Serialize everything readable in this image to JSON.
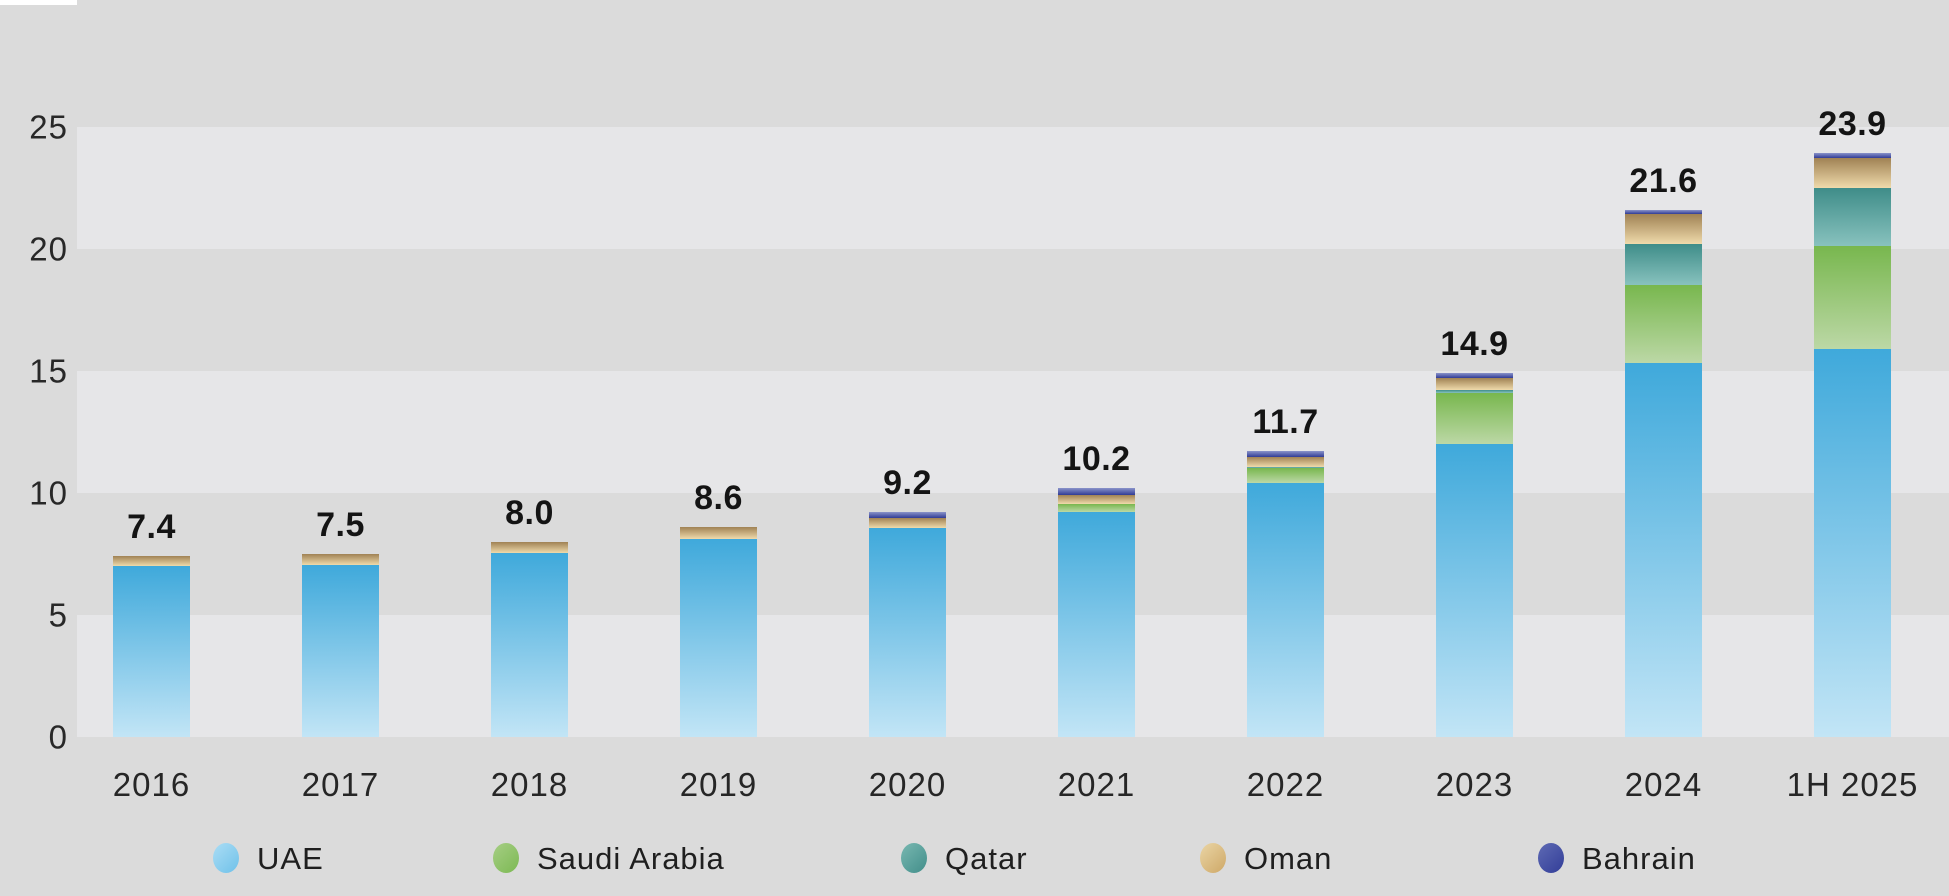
{
  "page": {
    "background_color": "#dbdbdb",
    "grid_band_color": "#e6e6e8",
    "corner_chip_color": "#ffffff"
  },
  "chart_data": {
    "type": "bar",
    "stacked": true,
    "title": "",
    "xlabel": "",
    "ylabel": "",
    "categories": [
      "2016",
      "2017",
      "2018",
      "2019",
      "2020",
      "2021",
      "2022",
      "2023",
      "2024",
      "1H 2025"
    ],
    "series": [
      {
        "name": "UAE",
        "color_top": "#3fa9db",
        "color_bottom": "#c2e5f6",
        "values": [
          7.0,
          7.05,
          7.55,
          8.1,
          8.55,
          9.2,
          10.4,
          12.0,
          15.3,
          15.9
        ]
      },
      {
        "name": "Saudi Arabia",
        "color_top": "#78b74e",
        "color_bottom": "#bcd8a6",
        "values": [
          0,
          0,
          0,
          0,
          0,
          0.35,
          0.6,
          2.1,
          3.2,
          4.2
        ]
      },
      {
        "name": "Qatar",
        "color_top": "#3f8d89",
        "color_bottom": "#88c2be",
        "values": [
          0,
          0,
          0,
          0,
          0,
          0,
          0.05,
          0.1,
          1.7,
          2.4
        ]
      },
      {
        "name": "Oman",
        "color_top": "#a08254",
        "color_bottom": "#efdaab",
        "values": [
          0.4,
          0.45,
          0.45,
          0.5,
          0.4,
          0.35,
          0.4,
          0.5,
          1.2,
          1.2
        ]
      },
      {
        "name": "Bahrain",
        "color_top": "#8a93c9",
        "color_bottom": "#313c96",
        "values": [
          0,
          0,
          0,
          0,
          0.25,
          0.3,
          0.25,
          0.2,
          0.2,
          0.2
        ]
      }
    ],
    "totals": [
      7.4,
      7.5,
      8.0,
      8.6,
      9.2,
      10.2,
      11.7,
      14.9,
      21.6,
      23.9
    ],
    "total_labels": [
      "7.4",
      "7.5",
      "8.0",
      "8.6",
      "9.2",
      "10.2",
      "11.7",
      "14.9",
      "21.6",
      "23.9"
    ],
    "y_ticks": [
      0,
      5,
      10,
      15,
      20,
      25
    ],
    "y_tick_labels": [
      "0",
      "5",
      "10",
      "15",
      "20",
      "25"
    ],
    "ylim": [
      0,
      30
    ],
    "grid_bands": [
      [
        20,
        25
      ],
      [
        10,
        15
      ],
      [
        0,
        5
      ]
    ],
    "legend_position": "bottom",
    "legend": [
      {
        "label": "UAE",
        "marker_light": "#abddf5",
        "marker_dark": "#6fc1e9"
      },
      {
        "label": "Saudi Arabia",
        "marker_light": "#a6ce84",
        "marker_dark": "#7cb953"
      },
      {
        "label": "Qatar",
        "marker_light": "#78b8b1",
        "marker_dark": "#428e8a"
      },
      {
        "label": "Oman",
        "marker_light": "#ead5a5",
        "marker_dark": "#cea867"
      },
      {
        "label": "Bahrain",
        "marker_light": "#5e6ab4",
        "marker_dark": "#323d98"
      }
    ]
  }
}
